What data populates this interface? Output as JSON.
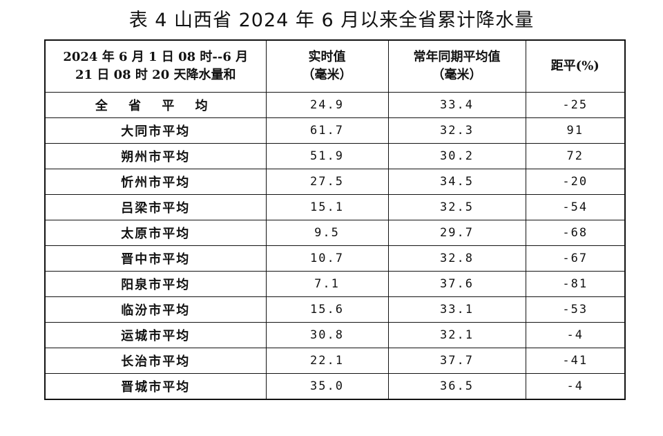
{
  "title": "表 4  山西省 2024 年 6 月以来全省累计降水量",
  "headers": {
    "col1_line1": "2024 年 6 月 1 日 08 时--6 月",
    "col1_line2": "21 日 08 时 20 天降水量和",
    "col2_line1": "实时值",
    "col2_line2": "（毫米）",
    "col3_line1": "常年同期平均值",
    "col3_line2": "（毫米）",
    "col4": "距平(%)"
  },
  "rows": [
    {
      "name": "全 省 平 均",
      "actual": "24.9",
      "normal": "33.4",
      "anomaly": "-25"
    },
    {
      "name": "大同市平均",
      "actual": "61.7",
      "normal": "32.3",
      "anomaly": "91"
    },
    {
      "name": "朔州市平均",
      "actual": "51.9",
      "normal": "30.2",
      "anomaly": "72"
    },
    {
      "name": "忻州市平均",
      "actual": "27.5",
      "normal": "34.5",
      "anomaly": "-20"
    },
    {
      "name": "吕梁市平均",
      "actual": "15.1",
      "normal": "32.5",
      "anomaly": "-54"
    },
    {
      "name": "太原市平均",
      "actual": "9.5",
      "normal": "29.7",
      "anomaly": "-68"
    },
    {
      "name": "晋中市平均",
      "actual": "10.7",
      "normal": "32.8",
      "anomaly": "-67"
    },
    {
      "name": "阳泉市平均",
      "actual": "7.1",
      "normal": "37.6",
      "anomaly": "-81"
    },
    {
      "name": "临汾市平均",
      "actual": "15.6",
      "normal": "33.1",
      "anomaly": "-53"
    },
    {
      "name": "运城市平均",
      "actual": "30.8",
      "normal": "32.1",
      "anomaly": "-4"
    },
    {
      "name": "长治市平均",
      "actual": "22.1",
      "normal": "37.7",
      "anomaly": "-41"
    },
    {
      "name": "晋城市平均",
      "actual": "35.0",
      "normal": "36.5",
      "anomaly": "-4"
    }
  ]
}
